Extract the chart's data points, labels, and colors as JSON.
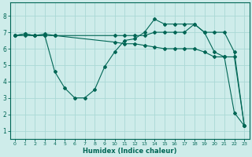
{
  "bg_color": "#ceecea",
  "grid_color": "#aad8d5",
  "line_color": "#006655",
  "xlabel": "Humidex (Indice chaleur)",
  "ylim": [
    0.5,
    8.8
  ],
  "xlim": [
    -0.5,
    23.5
  ],
  "yticks": [
    1,
    2,
    3,
    4,
    5,
    6,
    7,
    8
  ],
  "xticks": [
    0,
    1,
    2,
    3,
    4,
    5,
    6,
    7,
    8,
    9,
    10,
    11,
    12,
    13,
    14,
    15,
    16,
    17,
    18,
    19,
    20,
    21,
    22,
    23
  ],
  "series": [
    {
      "x": [
        0,
        1,
        2,
        3,
        4,
        5,
        6,
        7,
        8,
        9,
        10,
        11,
        12,
        13,
        14,
        15,
        16,
        17,
        18,
        19,
        20,
        21,
        22,
        23
      ],
      "y": [
        6.8,
        6.9,
        6.8,
        6.8,
        4.6,
        3.6,
        3.0,
        3.0,
        3.5,
        4.9,
        5.8,
        6.5,
        6.6,
        7.0,
        7.8,
        7.5,
        7.5,
        7.5,
        7.5,
        7.0,
        5.8,
        5.5,
        2.1,
        1.3
      ]
    },
    {
      "x": [
        0,
        1,
        2,
        3,
        4,
        10,
        11,
        12,
        13,
        14,
        15,
        16,
        17,
        18,
        19,
        20,
        21,
        22,
        23
      ],
      "y": [
        6.8,
        6.8,
        6.8,
        6.8,
        6.8,
        6.4,
        6.3,
        6.3,
        6.2,
        6.1,
        6.0,
        6.0,
        6.0,
        6.0,
        5.8,
        5.5,
        5.5,
        5.5,
        1.3
      ]
    },
    {
      "x": [
        0,
        1,
        2,
        3,
        4,
        10,
        11,
        12,
        13,
        14,
        15,
        16,
        17,
        18,
        19,
        20,
        21,
        22,
        23
      ],
      "y": [
        6.8,
        6.9,
        6.8,
        6.9,
        6.8,
        6.8,
        6.8,
        6.8,
        6.8,
        7.0,
        7.0,
        7.0,
        7.0,
        7.5,
        7.0,
        7.0,
        7.0,
        5.8,
        1.3
      ]
    }
  ]
}
